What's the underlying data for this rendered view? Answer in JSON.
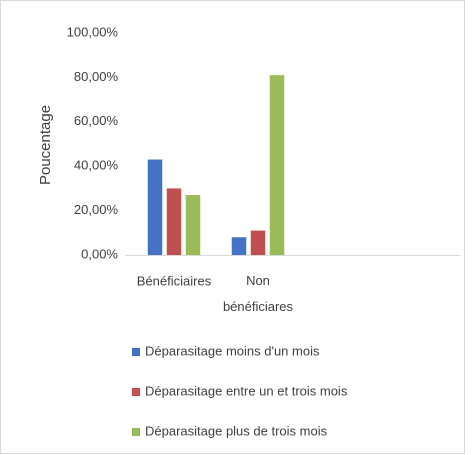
{
  "chart_data": {
    "type": "bar",
    "y_label": "Poucentage",
    "categories": [
      "Bénéficiaires",
      "Non bénéficiares"
    ],
    "series": [
      {
        "name": "Déparasitage moins d'un mois",
        "color": "#4472c4",
        "values": [
          43,
          8
        ]
      },
      {
        "name": "Déparasitage entre un et trois mois",
        "color": "#c0504d",
        "values": [
          30,
          11
        ]
      },
      {
        "name": "Déparasitage plus de trois mois",
        "color": "#9bbb59",
        "values": [
          27,
          81
        ]
      }
    ],
    "ylim": [
      0,
      100
    ],
    "yticks": [
      {
        "value": 0,
        "label": "0,00%"
      },
      {
        "value": 20,
        "label": "20,00%"
      },
      {
        "value": 40,
        "label": "40,00%"
      },
      {
        "value": 60,
        "label": "60,00%"
      },
      {
        "value": 80,
        "label": "80,00%"
      },
      {
        "value": 100,
        "label": "100,00%"
      }
    ],
    "legend": "bottom"
  }
}
